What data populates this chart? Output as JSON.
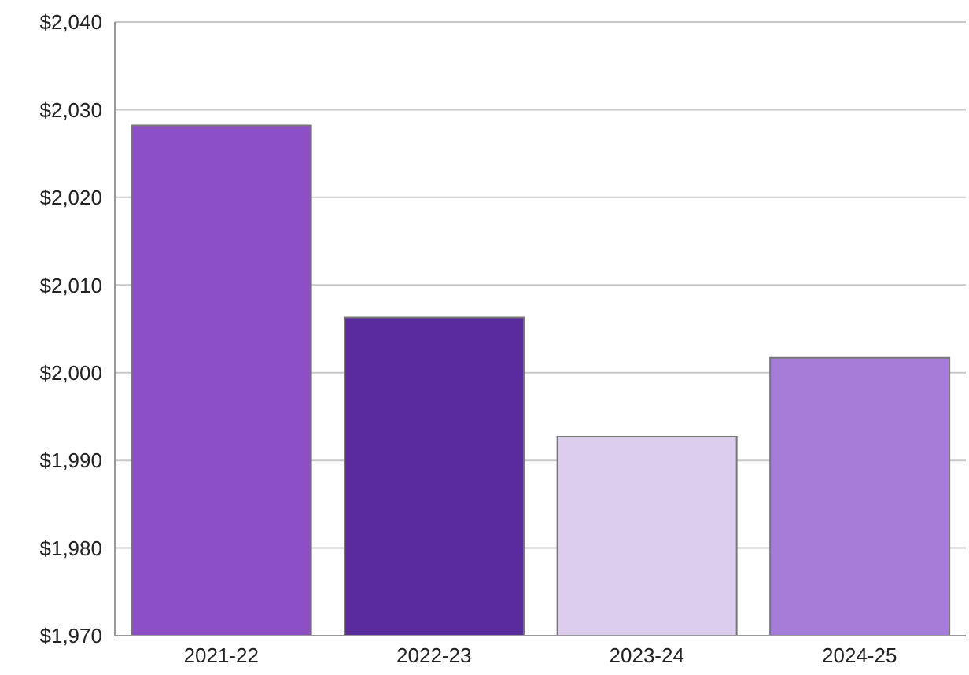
{
  "chart_data": {
    "type": "bar",
    "categories": [
      "2021-22",
      "2022-23",
      "2023-24",
      "2024-25"
    ],
    "values": [
      2028.2,
      2006.3,
      1992.7,
      2001.7
    ],
    "colors": [
      "#8c4fc6",
      "#5a2b9c",
      "#dccdee",
      "#a57dd8"
    ],
    "ylim": [
      1970,
      2040
    ],
    "yticks": [
      {
        "value": 1970,
        "label": "$1,970"
      },
      {
        "value": 1980,
        "label": "$1,980"
      },
      {
        "value": 1990,
        "label": "$1,990"
      },
      {
        "value": 2000,
        "label": "$2,000"
      },
      {
        "value": 2010,
        "label": "$2,010"
      },
      {
        "value": 2020,
        "label": "$2,020"
      },
      {
        "value": 2030,
        "label": "$2,030"
      },
      {
        "value": 2040,
        "label": "$2,040"
      }
    ],
    "grid": "y"
  }
}
